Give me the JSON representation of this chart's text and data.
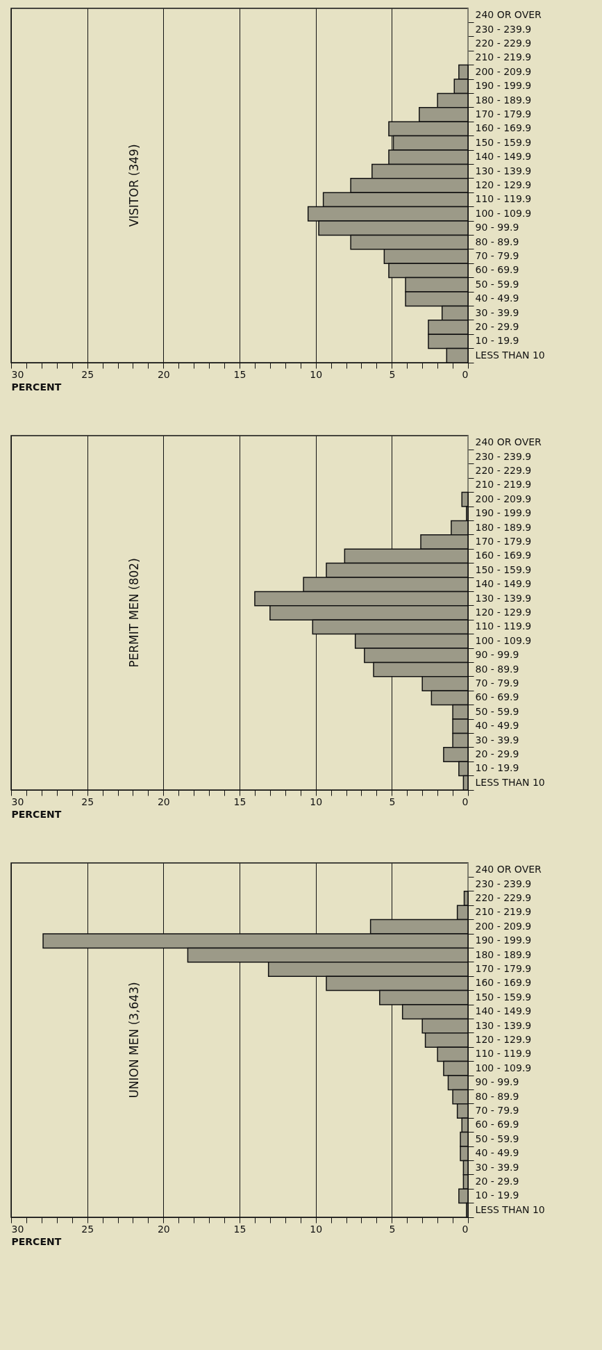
{
  "chart_data": [
    {
      "type": "bar",
      "orientation": "horizontal",
      "title": "VISITOR (349)",
      "xlabel": "PERCENT",
      "color": "#9c9a88",
      "grid": "x",
      "xlim": [
        30,
        0
      ],
      "xticks": [
        0,
        {
          "value": 1,
          "label": null
        },
        {
          "value": 2,
          "label": null
        },
        {
          "value": 3,
          "label": null
        },
        {
          "value": 4,
          "label": null
        },
        5,
        {
          "value": 6,
          "label": null
        },
        {
          "value": 7,
          "label": null
        },
        {
          "value": 8,
          "label": null
        },
        {
          "value": 9,
          "label": null
        },
        10,
        {
          "value": 11,
          "label": null
        },
        {
          "value": 12,
          "label": null
        },
        {
          "value": 13,
          "label": null
        },
        {
          "value": 14,
          "label": null
        },
        15,
        {
          "value": 16,
          "label": null
        },
        {
          "value": 17,
          "label": null
        },
        {
          "value": 18,
          "label": null
        },
        {
          "value": 19,
          "label": null
        },
        20,
        {
          "value": 21,
          "label": null
        },
        {
          "value": 22,
          "label": null
        },
        {
          "value": 23,
          "label": null
        },
        {
          "value": 24,
          "label": null
        },
        25,
        {
          "value": 26,
          "label": null
        },
        {
          "value": 27,
          "label": null
        },
        {
          "value": 28,
          "label": null
        },
        {
          "value": 29,
          "label": null
        },
        30
      ],
      "categories": [
        "240 OR OVER",
        "230 - 239.9",
        "220 - 229.9",
        "210 - 219.9",
        "200 - 209.9",
        "190 - 199.9",
        "180 - 189.9",
        "170 - 179.9",
        "160 - 169.9",
        "150 - 159.9",
        "140 - 149.9",
        "130 - 139.9",
        "120 - 129.9",
        "110 - 119.9",
        "100 - 109.9",
        "90 - 99.9",
        "80 - 89.9",
        "70 - 79.9",
        "60 - 69.9",
        "50 - 59.9",
        "40 - 49.9",
        "30 - 39.9",
        "20 - 29.9",
        "10 - 19.9",
        "LESS THAN 10"
      ],
      "values": [
        0,
        0,
        0,
        0,
        0.6,
        0.9,
        2.0,
        3.2,
        5.2,
        4.9,
        5.2,
        6.3,
        7.7,
        9.5,
        10.5,
        9.8,
        7.7,
        5.5,
        5.2,
        4.1,
        4.1,
        1.7,
        2.6,
        2.6,
        1.4
      ]
    },
    {
      "type": "bar",
      "orientation": "horizontal",
      "title": "PERMIT MEN (802)",
      "xlabel": "PERCENT",
      "color": "#9c9a88",
      "grid": "x",
      "xlim": [
        30,
        0
      ],
      "xticks": [
        0,
        {
          "value": 1,
          "label": null
        },
        {
          "value": 2,
          "label": null
        },
        {
          "value": 3,
          "label": null
        },
        {
          "value": 4,
          "label": null
        },
        5,
        {
          "value": 6,
          "label": null
        },
        {
          "value": 7,
          "label": null
        },
        {
          "value": 8,
          "label": null
        },
        {
          "value": 9,
          "label": null
        },
        10,
        {
          "value": 11,
          "label": null
        },
        {
          "value": 12,
          "label": null
        },
        {
          "value": 13,
          "label": null
        },
        {
          "value": 14,
          "label": null
        },
        15,
        {
          "value": 16,
          "label": null
        },
        {
          "value": 17,
          "label": null
        },
        {
          "value": 18,
          "label": null
        },
        {
          "value": 19,
          "label": null
        },
        20,
        {
          "value": 21,
          "label": null
        },
        {
          "value": 22,
          "label": null
        },
        {
          "value": 23,
          "label": null
        },
        {
          "value": 24,
          "label": null
        },
        25,
        {
          "value": 26,
          "label": null
        },
        {
          "value": 27,
          "label": null
        },
        {
          "value": 28,
          "label": null
        },
        {
          "value": 29,
          "label": null
        },
        30
      ],
      "categories": [
        "240 OR OVER",
        "230 - 239.9",
        "220 - 229.9",
        "210 - 219.9",
        "200 - 209.9",
        "190 - 199.9",
        "180 - 189.9",
        "170 - 179.9",
        "160 - 169.9",
        "150 - 159.9",
        "140 - 149.9",
        "130 - 139.9",
        "120 - 129.9",
        "110 - 119.9",
        "100 - 109.9",
        "90 - 99.9",
        "80 - 89.9",
        "70 - 79.9",
        "60 - 69.9",
        "50 - 59.9",
        "40 - 49.9",
        "30 - 39.9",
        "20 - 29.9",
        "10 - 19.9",
        "LESS THAN 10"
      ],
      "values": [
        0,
        0,
        0,
        0,
        0.4,
        0.1,
        1.1,
        3.1,
        8.1,
        9.3,
        10.8,
        14.0,
        13.0,
        10.2,
        7.4,
        6.8,
        6.2,
        3.0,
        2.4,
        1.0,
        1.0,
        1.0,
        1.6,
        0.6,
        0.3
      ]
    },
    {
      "type": "bar",
      "orientation": "horizontal",
      "title": "UNION MEN (3,643)",
      "xlabel": "PERCENT",
      "color": "#9c9a88",
      "grid": "x",
      "xlim": [
        30,
        0
      ],
      "xticks": [
        0,
        {
          "value": 1,
          "label": null
        },
        {
          "value": 2,
          "label": null
        },
        {
          "value": 3,
          "label": null
        },
        {
          "value": 4,
          "label": null
        },
        5,
        {
          "value": 6,
          "label": null
        },
        {
          "value": 7,
          "label": null
        },
        {
          "value": 8,
          "label": null
        },
        {
          "value": 9,
          "label": null
        },
        10,
        {
          "value": 11,
          "label": null
        },
        {
          "value": 12,
          "label": null
        },
        {
          "value": 13,
          "label": null
        },
        {
          "value": 14,
          "label": null
        },
        15,
        {
          "value": 16,
          "label": null
        },
        {
          "value": 17,
          "label": null
        },
        {
          "value": 18,
          "label": null
        },
        {
          "value": 19,
          "label": null
        },
        20,
        {
          "value": 21,
          "label": null
        },
        {
          "value": 22,
          "label": null
        },
        {
          "value": 23,
          "label": null
        },
        {
          "value": 24,
          "label": null
        },
        25,
        {
          "value": 26,
          "label": null
        },
        {
          "value": 27,
          "label": null
        },
        {
          "value": 28,
          "label": null
        },
        {
          "value": 29,
          "label": null
        },
        30
      ],
      "categories": [
        "240 OR OVER",
        "230 - 239.9",
        "220 - 229.9",
        "210 - 219.9",
        "200 - 209.9",
        "190 - 199.9",
        "180 - 189.9",
        "170 - 179.9",
        "160 - 169.9",
        "150 - 159.9",
        "140 - 149.9",
        "130 - 139.9",
        "120 - 129.9",
        "110 - 119.9",
        "100 - 109.9",
        "90 - 99.9",
        "80 - 89.9",
        "70 - 79.9",
        "60 - 69.9",
        "50 - 59.9",
        "40 - 49.9",
        "30 - 39.9",
        "20 - 29.9",
        "10 - 19.9",
        "LESS THAN 10"
      ],
      "values": [
        0,
        0,
        0.25,
        0.7,
        6.4,
        27.9,
        18.4,
        13.1,
        9.3,
        5.8,
        4.3,
        3.0,
        2.8,
        2.0,
        1.6,
        1.3,
        1.0,
        0.7,
        0.4,
        0.5,
        0.5,
        0.3,
        0.3,
        0.6,
        0.1
      ]
    }
  ]
}
